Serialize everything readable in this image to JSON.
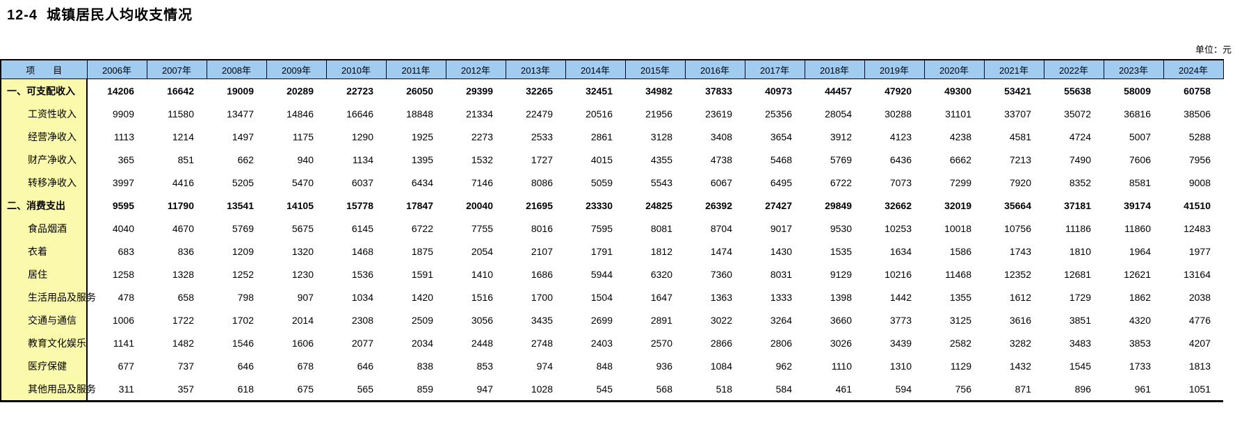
{
  "page": {
    "title": "12-4  城镇居民人均收支情况",
    "unit_label": "单位：元"
  },
  "colors": {
    "header_bg": "#A2CBF0",
    "item_col_bg": "#FBF9AC",
    "border": "#000000"
  },
  "table": {
    "item_header": "项　　目",
    "year_columns": [
      "2006年",
      "2007年",
      "2008年",
      "2009年",
      "2010年",
      "2011年",
      "2012年",
      "2013年",
      "2014年",
      "2015年",
      "2016年",
      "2017年",
      "2018年",
      "2019年",
      "2020年",
      "2021年",
      "2022年",
      "2023年",
      "2024年"
    ],
    "rows": [
      {
        "label": "一、可支配收入",
        "bold": true,
        "indent": false,
        "values": [
          14206,
          16642,
          19009,
          20289,
          22723,
          26050,
          29399,
          32265,
          32451,
          34982,
          37833,
          40973,
          44457,
          47920,
          49300,
          53421,
          55638,
          58009,
          60758
        ]
      },
      {
        "label": "工资性收入",
        "bold": false,
        "indent": true,
        "values": [
          9909,
          11580,
          13477,
          14846,
          16646,
          18848,
          21334,
          22479,
          20516,
          21956,
          23619,
          25356,
          28054,
          30288,
          31101,
          33707,
          35072,
          36816,
          38506
        ]
      },
      {
        "label": "经营净收入",
        "bold": false,
        "indent": true,
        "values": [
          1113,
          1214,
          1497,
          1175,
          1290,
          1925,
          2273,
          2533,
          2861,
          3128,
          3408,
          3654,
          3912,
          4123,
          4238,
          4581,
          4724,
          5007,
          5288
        ]
      },
      {
        "label": "财产净收入",
        "bold": false,
        "indent": true,
        "values": [
          365,
          851,
          662,
          940,
          1134,
          1395,
          1532,
          1727,
          4015,
          4355,
          4738,
          5468,
          5769,
          6436,
          6662,
          7213,
          7490,
          7606,
          7956
        ]
      },
      {
        "label": "转移净收入",
        "bold": false,
        "indent": true,
        "values": [
          3997,
          4416,
          5205,
          5470,
          6037,
          6434,
          7146,
          8086,
          5059,
          5543,
          6067,
          6495,
          6722,
          7073,
          7299,
          7920,
          8352,
          8581,
          9008
        ]
      },
      {
        "label": "二、消费支出",
        "bold": true,
        "indent": false,
        "values": [
          9595,
          11790,
          13541,
          14105,
          15778,
          17847,
          20040,
          21695,
          23330,
          24825,
          26392,
          27427,
          29849,
          32662,
          32019,
          35664,
          37181,
          39174,
          41510
        ]
      },
      {
        "label": "食品烟酒",
        "bold": false,
        "indent": true,
        "values": [
          4040,
          4670,
          5769,
          5675,
          6145,
          6722,
          7755,
          8016,
          7595,
          8081,
          8704,
          9017,
          9530,
          10253,
          10018,
          10756,
          11186,
          11860,
          12483
        ]
      },
      {
        "label": "衣着",
        "bold": false,
        "indent": true,
        "values": [
          683,
          836,
          1209,
          1320,
          1468,
          1875,
          2054,
          2107,
          1791,
          1812,
          1474,
          1430,
          1535,
          1634,
          1586,
          1743,
          1810,
          1964,
          1977
        ]
      },
      {
        "label": "居住",
        "bold": false,
        "indent": true,
        "values": [
          1258,
          1328,
          1252,
          1230,
          1536,
          1591,
          1410,
          1686,
          5944,
          6320,
          7360,
          8031,
          9129,
          10216,
          11468,
          12352,
          12681,
          12621,
          13164
        ]
      },
      {
        "label": "生活用品及服务",
        "bold": false,
        "indent": true,
        "values": [
          478,
          658,
          798,
          907,
          1034,
          1420,
          1516,
          1700,
          1504,
          1647,
          1363,
          1333,
          1398,
          1442,
          1355,
          1612,
          1729,
          1862,
          2038
        ]
      },
      {
        "label": "交通与通信",
        "bold": false,
        "indent": true,
        "values": [
          1006,
          1722,
          1702,
          2014,
          2308,
          2509,
          3056,
          3435,
          2699,
          2891,
          3022,
          3264,
          3660,
          3773,
          3125,
          3616,
          3851,
          4320,
          4776
        ]
      },
      {
        "label": "教育文化娱乐",
        "bold": false,
        "indent": true,
        "values": [
          1141,
          1482,
          1546,
          1606,
          2077,
          2034,
          2448,
          2748,
          2403,
          2570,
          2866,
          2806,
          3026,
          3439,
          2582,
          3282,
          3483,
          3853,
          4207
        ]
      },
      {
        "label": "医疗保健",
        "bold": false,
        "indent": true,
        "values": [
          677,
          737,
          646,
          678,
          646,
          838,
          853,
          974,
          848,
          936,
          1084,
          962,
          1110,
          1310,
          1129,
          1432,
          1545,
          1733,
          1813
        ]
      },
      {
        "label": "其他用品及服务",
        "bold": false,
        "indent": true,
        "values": [
          311,
          357,
          618,
          675,
          565,
          859,
          947,
          1028,
          545,
          568,
          518,
          584,
          461,
          594,
          756,
          871,
          896,
          961,
          1051
        ]
      }
    ]
  }
}
